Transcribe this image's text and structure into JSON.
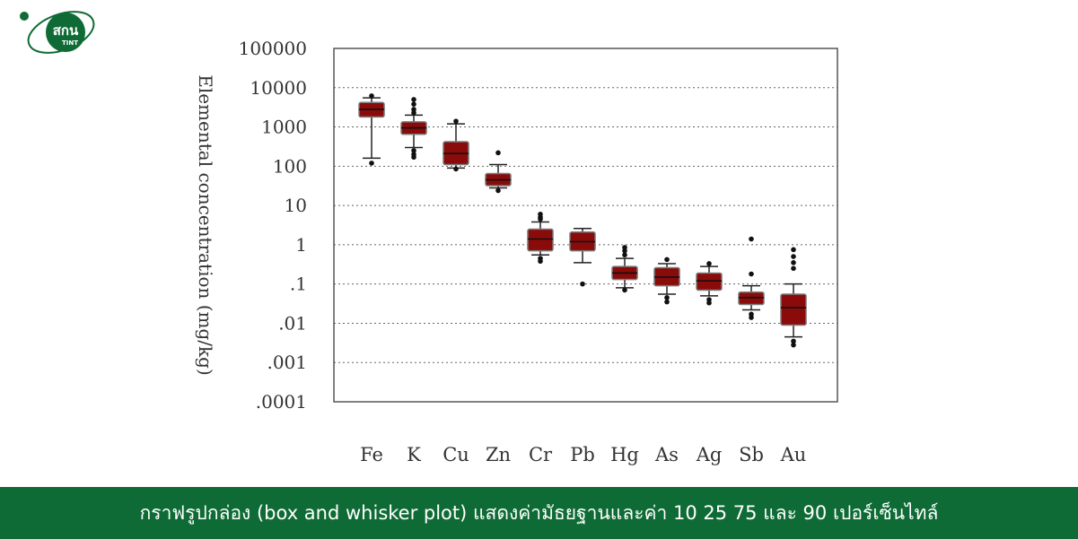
{
  "brand": {
    "logo_text": "สกน",
    "logo_subtext": "TINT",
    "colors": {
      "green": "#0f6b35",
      "box_fill": "#8b0a0a"
    }
  },
  "footer": {
    "caption": "กราฟรูปกล่อง (box and whisker plot) แสดงค่ามัธยฐานและค่า 10 25 75 และ 90 เปอร์เซ็นไทล์"
  },
  "chart_data": {
    "type": "box",
    "ylabel": "Elemental concentration (mg/kg)",
    "yscale": "log",
    "ylim": [
      0.0001,
      100000
    ],
    "ytick_labels": [
      "100000",
      "10000",
      "1000",
      "100",
      "10",
      "1",
      ".1",
      ".01",
      ".001",
      ".0001"
    ],
    "ytick_values": [
      100000,
      10000,
      1000,
      100,
      10,
      1,
      0.1,
      0.01,
      0.001,
      0.0001
    ],
    "grid": "horizontal-dotted",
    "categories": [
      "Fe",
      "K",
      "Cu",
      "Zn",
      "Cr",
      "Pb",
      "Hg",
      "As",
      "Ag",
      "Sb",
      "Au"
    ],
    "boxes": [
      {
        "name": "Fe",
        "p10": 160,
        "q1": 1800,
        "median": 2800,
        "q3": 4200,
        "p90": 5500,
        "outliers": [
          6200,
          120
        ]
      },
      {
        "name": "K",
        "p10": 300,
        "q1": 650,
        "median": 950,
        "q3": 1350,
        "p90": 2000,
        "outliers": [
          5000,
          3800,
          2800,
          2300,
          250,
          200,
          170
        ]
      },
      {
        "name": "Cu",
        "p10": 90,
        "q1": 110,
        "median": 210,
        "q3": 420,
        "p90": 1200,
        "outliers": [
          1400,
          85
        ]
      },
      {
        "name": "Zn",
        "p10": 28,
        "q1": 32,
        "median": 45,
        "q3": 65,
        "p90": 110,
        "outliers": [
          220,
          24
        ]
      },
      {
        "name": "Cr",
        "p10": 0.55,
        "q1": 0.7,
        "median": 1.4,
        "q3": 2.5,
        "p90": 3.8,
        "outliers": [
          6,
          5,
          4.5,
          0.45,
          0.38
        ]
      },
      {
        "name": "Pb",
        "p10": 0.35,
        "q1": 0.7,
        "median": 1.2,
        "q3": 2.1,
        "p90": 2.6,
        "outliers": [
          0.1
        ]
      },
      {
        "name": "Hg",
        "p10": 0.08,
        "q1": 0.13,
        "median": 0.19,
        "q3": 0.28,
        "p90": 0.45,
        "outliers": [
          0.85,
          0.7,
          0.55,
          0.07
        ]
      },
      {
        "name": "As",
        "p10": 0.055,
        "q1": 0.09,
        "median": 0.15,
        "q3": 0.26,
        "p90": 0.33,
        "outliers": [
          0.42,
          0.045,
          0.035
        ]
      },
      {
        "name": "Ag",
        "p10": 0.05,
        "q1": 0.07,
        "median": 0.12,
        "q3": 0.19,
        "p90": 0.28,
        "outliers": [
          0.33,
          0.04,
          0.033
        ]
      },
      {
        "name": "Sb",
        "p10": 0.022,
        "q1": 0.03,
        "median": 0.045,
        "q3": 0.062,
        "p90": 0.09,
        "outliers": [
          1.4,
          0.18,
          0.017,
          0.014
        ]
      },
      {
        "name": "Au",
        "p10": 0.0045,
        "q1": 0.009,
        "median": 0.025,
        "q3": 0.055,
        "p90": 0.1,
        "outliers": [
          0.75,
          0.5,
          0.35,
          0.25,
          0.0035,
          0.0028
        ]
      }
    ]
  }
}
